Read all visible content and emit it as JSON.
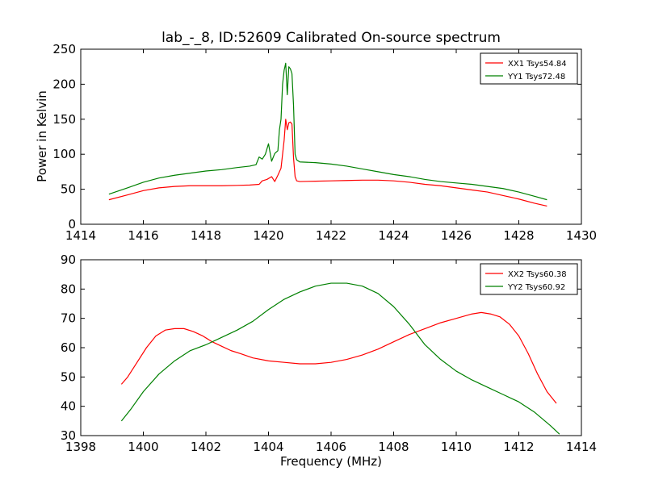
{
  "chart_data": [
    {
      "type": "line",
      "title": "lab_-_8, ID:52609 Calibrated On-source spectrum",
      "ylabel": "Power in Kelvin",
      "xlabel": "",
      "xlim": [
        1414,
        1430
      ],
      "ylim": [
        0,
        250
      ],
      "xticks": [
        "1414",
        "1416",
        "1418",
        "1420",
        "1422",
        "1424",
        "1426",
        "1428",
        "1430"
      ],
      "yticks": [
        "0",
        "50",
        "100",
        "150",
        "200",
        "250"
      ],
      "grid": false,
      "legend_position": "top-right",
      "series": [
        {
          "name": "XX1 Tsys54.84",
          "color": "#ff0000",
          "x": [
            1414.9,
            1415.5,
            1416,
            1416.5,
            1417,
            1417.5,
            1418,
            1418.5,
            1419,
            1419.4,
            1419.7,
            1419.8,
            1419.95,
            1420.1,
            1420.2,
            1420.3,
            1420.4,
            1420.5,
            1420.55,
            1420.6,
            1420.65,
            1420.7,
            1420.75,
            1420.8,
            1420.85,
            1420.9,
            1421,
            1421.5,
            1422,
            1422.5,
            1423,
            1423.5,
            1424,
            1424.5,
            1425,
            1425.5,
            1426,
            1426.5,
            1427,
            1427.5,
            1428,
            1428.5,
            1428.9
          ],
          "y": [
            35,
            42,
            48,
            52,
            54,
            55,
            55,
            55,
            55.5,
            56,
            57,
            62,
            64,
            68,
            61,
            70,
            80,
            120,
            150,
            135,
            145,
            146,
            143,
            95,
            68,
            62,
            61,
            61.5,
            62,
            62.5,
            63,
            63,
            62,
            60,
            57,
            55,
            52,
            49,
            46,
            41,
            36,
            30,
            26
          ]
        },
        {
          "name": "YY1 Tsys72.48",
          "color": "#008000",
          "x": [
            1414.9,
            1415.5,
            1416,
            1416.5,
            1417,
            1417.5,
            1418,
            1418.5,
            1419,
            1419.4,
            1419.6,
            1419.7,
            1419.8,
            1419.9,
            1420.0,
            1420.1,
            1420.2,
            1420.3,
            1420.35,
            1420.4,
            1420.45,
            1420.5,
            1420.55,
            1420.6,
            1420.65,
            1420.7,
            1420.75,
            1420.8,
            1420.85,
            1420.9,
            1421,
            1421.5,
            1422,
            1422.5,
            1423,
            1423.5,
            1424,
            1424.5,
            1425,
            1425.5,
            1426,
            1426.5,
            1427,
            1427.5,
            1428,
            1428.5,
            1428.9
          ],
          "y": [
            43,
            52,
            60,
            66,
            70,
            73,
            76,
            78,
            81,
            83,
            85,
            96,
            93,
            100,
            115,
            90,
            101,
            105,
            135,
            150,
            200,
            220,
            230,
            185,
            225,
            222,
            215,
            170,
            100,
            92,
            89,
            88,
            86,
            83,
            79,
            75,
            71,
            68,
            64,
            61,
            59,
            57,
            54,
            51,
            46,
            40,
            35
          ]
        }
      ]
    },
    {
      "type": "line",
      "title": "",
      "xlabel": "Frequency (MHz)",
      "ylabel": "",
      "xlim": [
        1398,
        1414
      ],
      "ylim": [
        30,
        90
      ],
      "xticks": [
        "1398",
        "1400",
        "1402",
        "1404",
        "1406",
        "1408",
        "1410",
        "1412",
        "1414"
      ],
      "yticks": [
        "30",
        "40",
        "50",
        "60",
        "70",
        "80",
        "90"
      ],
      "grid": false,
      "legend_position": "top-right",
      "series": [
        {
          "name": "XX2 Tsys60.38",
          "color": "#ff0000",
          "x": [
            1399.3,
            1399.5,
            1399.8,
            1400.1,
            1400.4,
            1400.7,
            1401.0,
            1401.3,
            1401.6,
            1401.9,
            1402.2,
            1402.5,
            1402.8,
            1403.1,
            1403.5,
            1404.0,
            1404.5,
            1405.0,
            1405.5,
            1406.0,
            1406.5,
            1407.0,
            1407.5,
            1408.0,
            1408.5,
            1409.0,
            1409.5,
            1410.0,
            1410.5,
            1410.8,
            1411.1,
            1411.4,
            1411.7,
            1412.0,
            1412.3,
            1412.6,
            1412.9,
            1413.2
          ],
          "y": [
            47.5,
            50,
            55,
            60,
            64,
            66,
            66.5,
            66.5,
            65.5,
            64,
            62,
            60.5,
            59,
            58,
            56.5,
            55.5,
            55,
            54.5,
            54.5,
            55,
            56,
            57.5,
            59.5,
            62,
            64.5,
            66.5,
            68.5,
            70,
            71.5,
            72,
            71.5,
            70.5,
            68,
            64,
            58,
            51,
            45,
            41
          ]
        },
        {
          "name": "YY2 Tsys60.92",
          "color": "#008000",
          "x": [
            1399.3,
            1399.6,
            1400.0,
            1400.5,
            1401.0,
            1401.5,
            1402.0,
            1402.5,
            1403.0,
            1403.5,
            1404.0,
            1404.5,
            1405.0,
            1405.5,
            1406.0,
            1406.5,
            1407.0,
            1407.5,
            1408.0,
            1408.5,
            1409.0,
            1409.5,
            1410.0,
            1410.5,
            1411.0,
            1411.5,
            1412.0,
            1412.5,
            1413.0,
            1413.3
          ],
          "y": [
            35,
            39,
            45,
            51,
            55.5,
            59,
            61,
            63.5,
            66,
            69,
            73,
            76.5,
            79,
            81,
            82,
            82,
            81,
            78.5,
            74,
            68,
            61,
            56,
            52,
            49,
            46.5,
            44,
            41.5,
            38,
            33.5,
            30.5
          ]
        }
      ]
    }
  ]
}
